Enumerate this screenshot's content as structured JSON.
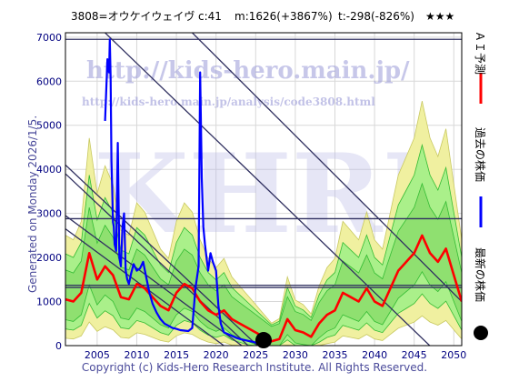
{
  "header": {
    "code_name": "3808=オウケイウェイヴ",
    "c": "c:41",
    "m": "m:1626(+3867%)",
    "t": "t:-298(-826%)",
    "stars": "★★★"
  },
  "generated_text": "Generated on Monday 2026/1/5.",
  "copyright": "Copyright (c) Kids-Hero Research Institute. All Rights Reserved.",
  "watermark": {
    "url1": "http://kids-hero.main.jp/",
    "url2": "http://kids-hero.main.jp/analysis/code3808.html",
    "big": "KHRI",
    "bottom": "main.jp/"
  },
  "legend": {
    "forecast": "ＡＩ予測",
    "past": "過去の株価",
    "latest": "最新の株価"
  },
  "colors": {
    "forecast": "#ff0000",
    "past": "#0000ff",
    "latest": "#000000",
    "band_fill": "#aaf08a",
    "band_outer": "#f0f0a0",
    "band_line": "#33bb33",
    "trend": "#303060",
    "hline": "#303060",
    "grid": "#d8d8d8"
  },
  "chart_data": {
    "type": "line",
    "xlim": [
      2001,
      2051
    ],
    "ylim": [
      0,
      7100
    ],
    "x_ticks": [
      2005,
      2010,
      2015,
      2020,
      2025,
      2030,
      2035,
      2040,
      2045,
      2050
    ],
    "y_ticks": [
      0,
      1000,
      2000,
      3000,
      4000,
      5000,
      6000,
      7000
    ],
    "grid": true,
    "horizontal_lines": [
      6950,
      2880,
      1370,
      1320
    ],
    "trend_lines": [
      [
        [
          2001,
          4100
        ],
        [
          2027,
          -300
        ]
      ],
      [
        [
          2001,
          3900
        ],
        [
          2027,
          -500
        ]
      ],
      [
        [
          2001,
          2950
        ],
        [
          2024,
          -100
        ]
      ],
      [
        [
          2001,
          2650
        ],
        [
          2024,
          -400
        ]
      ],
      [
        [
          2006,
          7100
        ],
        [
          2051,
          -700
        ]
      ],
      [
        [
          2017,
          7100
        ],
        [
          2051,
          1000
        ]
      ]
    ],
    "series": [
      {
        "x": [
          2006.0,
          2006.3,
          2006.5,
          2006.6,
          2006.7,
          2006.8,
          2006.9,
          2007.0,
          2007.1,
          2007.2,
          2007.4,
          2007.6,
          2007.8,
          2008.0,
          2008.2,
          2008.4,
          2008.6,
          2008.8,
          2009.0,
          2009.3,
          2009.6,
          2010.0,
          2010.4,
          2010.8,
          2011.2,
          2011.6,
          2012.0,
          2012.5,
          2013.0,
          2013.5,
          2014.0,
          2014.5,
          2015.0,
          2015.5,
          2016.0,
          2016.5,
          2017.0,
          2017.4,
          2017.8,
          2018.0,
          2018.2,
          2018.4,
          2018.6,
          2018.8,
          2019.0,
          2019.3,
          2019.6,
          2020.0,
          2020.3,
          2020.6,
          2021.0,
          2021.5,
          2022.0,
          2022.5,
          2023.0,
          2023.5,
          2024.0,
          2024.5,
          2025.0,
          2025.5,
          2026.0
        ],
        "values": [
          5100,
          6500,
          6200,
          6950,
          6100,
          4200,
          3600,
          2800,
          2700,
          2300,
          2150,
          4600,
          2000,
          1800,
          2700,
          3000,
          1700,
          1500,
          1400,
          1650,
          1850,
          1700,
          1750,
          1900,
          1550,
          1200,
          950,
          750,
          600,
          500,
          450,
          400,
          380,
          350,
          340,
          330,
          400,
          1300,
          1800,
          6200,
          3800,
          2700,
          2300,
          2000,
          1700,
          2100,
          1900,
          1700,
          900,
          500,
          300,
          260,
          220,
          180,
          150,
          130,
          110,
          90,
          70,
          50,
          41
        ]
      },
      {
        "x": [
          2001,
          2002,
          2003,
          2004,
          2005,
          2006,
          2007,
          2008,
          2009,
          2010,
          2011,
          2012,
          2013,
          2014,
          2015,
          2016,
          2017,
          2018,
          2019,
          2020,
          2021,
          2022,
          2023,
          2024,
          2025,
          2026,
          2027,
          2028,
          2029,
          2030,
          2031,
          2032,
          2033,
          2034,
          2035,
          2036,
          2037,
          2038,
          2039,
          2040,
          2041,
          2042,
          2043,
          2044,
          2045,
          2046,
          2047,
          2048,
          2049,
          2050,
          2051
        ],
        "values": [
          1050,
          1000,
          1200,
          2100,
          1500,
          1800,
          1600,
          1100,
          1050,
          1400,
          1300,
          1100,
          900,
          800,
          1200,
          1400,
          1300,
          1000,
          800,
          700,
          800,
          600,
          500,
          400,
          300,
          200,
          100,
          150,
          600,
          350,
          300,
          200,
          500,
          700,
          800,
          1200,
          1100,
          1000,
          1300,
          1000,
          900,
          1300,
          1700,
          1900,
          2100,
          2500,
          2100,
          1900,
          2200,
          1600,
          1000
        ]
      }
    ],
    "latest_point": {
      "x": 2026.0,
      "y": 41
    }
  }
}
